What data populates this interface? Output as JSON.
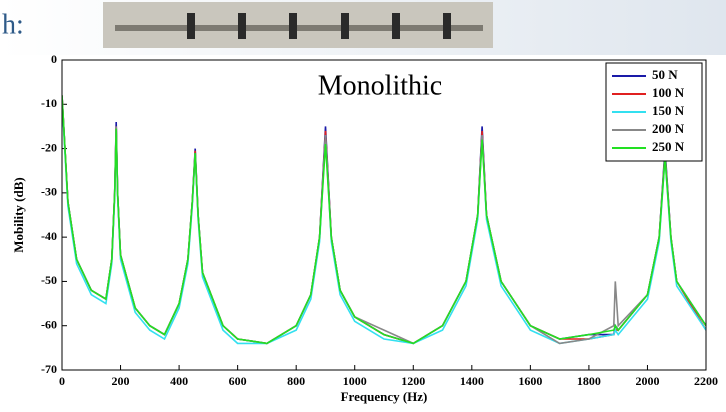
{
  "header_fragment": "h:",
  "chart_data": {
    "type": "line",
    "title": "Monolithic",
    "xlabel": "Frequency (Hz)",
    "ylabel": "Mobility (dB)",
    "x": [
      0,
      20,
      50,
      100,
      150,
      170,
      180,
      185,
      190,
      200,
      250,
      300,
      350,
      400,
      430,
      445,
      455,
      465,
      480,
      550,
      600,
      700,
      800,
      850,
      880,
      900,
      920,
      950,
      1000,
      1100,
      1200,
      1300,
      1380,
      1420,
      1435,
      1450,
      1500,
      1600,
      1700,
      1800,
      1885,
      1890,
      1900,
      2000,
      2040,
      2060,
      2080,
      2100,
      2200
    ],
    "series": [
      {
        "name": "50 N",
        "color": "#1a1aa8",
        "values": [
          -8,
          -32,
          -45,
          -52,
          -54,
          -45,
          -30,
          -14,
          -30,
          -44,
          -56,
          -60,
          -62,
          -55,
          -45,
          -32,
          -20,
          -35,
          -48,
          -60,
          -63,
          -64,
          -60,
          -53,
          -40,
          -15,
          -40,
          -52,
          -58,
          -62,
          -64,
          -60,
          -50,
          -35,
          -15,
          -35,
          -50,
          -60,
          -63,
          -62,
          -62,
          -60,
          -61,
          -53,
          -40,
          -20,
          -40,
          -50,
          -60
        ]
      },
      {
        "name": "100 N",
        "color": "#e02020",
        "values": [
          -8,
          -32,
          -45,
          -52,
          -54,
          -45,
          -30,
          -15,
          -30,
          -44,
          -56,
          -60,
          -62,
          -55,
          -45,
          -32,
          -20.5,
          -35,
          -48,
          -60,
          -63,
          -64,
          -60,
          -53,
          -40,
          -16,
          -40,
          -52,
          -58,
          -62,
          -64,
          -60,
          -50,
          -35,
          -16,
          -35,
          -50,
          -60,
          -63,
          -63,
          -62,
          -61,
          -61,
          -53,
          -40,
          -21,
          -40,
          -50,
          -61
        ]
      },
      {
        "name": "150 N",
        "color": "#33e0f0",
        "values": [
          -9,
          -33,
          -46,
          -53,
          -55,
          -46,
          -31,
          -16,
          -31,
          -45,
          -57,
          -61,
          -63,
          -56,
          -46,
          -33,
          -21,
          -36,
          -49,
          -61,
          -64,
          -64,
          -61,
          -54,
          -41,
          -17,
          -41,
          -53,
          -59,
          -63,
          -64,
          -61,
          -51,
          -36,
          -17,
          -36,
          -51,
          -61,
          -64,
          -63,
          -62,
          -61,
          -62,
          -54,
          -41,
          -22,
          -41,
          -51,
          -61
        ]
      },
      {
        "name": "200 N",
        "color": "#888888",
        "values": [
          -8,
          -32,
          -45,
          -52,
          -54,
          -45,
          -30,
          -15,
          -30,
          -44,
          -56,
          -60,
          -62,
          -55,
          -45,
          -32,
          -21,
          -35,
          -48,
          -60,
          -63,
          -64,
          -60,
          -53,
          -40,
          -17,
          -40,
          -52,
          -58,
          -61,
          -64,
          -60,
          -50,
          -35,
          -17,
          -35,
          -50,
          -60,
          -64,
          -63,
          -60,
          -50,
          -60,
          -53,
          -40,
          -21,
          -40,
          -50,
          -60
        ]
      },
      {
        "name": "250 N",
        "color": "#22e022",
        "values": [
          -8,
          -32,
          -45,
          -52,
          -54,
          -45,
          -30,
          -15.5,
          -30,
          -44,
          -56,
          -60,
          -62,
          -55,
          -45,
          -32,
          -21,
          -35,
          -48,
          -60,
          -63,
          -64,
          -60,
          -53,
          -40,
          -19,
          -40,
          -52,
          -58,
          -62,
          -64,
          -60,
          -50,
          -35,
          -18,
          -35,
          -50,
          -60,
          -63,
          -62,
          -61,
          -60,
          -61,
          -53,
          -40,
          -22,
          -40,
          -50,
          -60
        ]
      }
    ],
    "xlim": [
      0,
      2200
    ],
    "xticks": [
      0,
      200,
      400,
      600,
      800,
      1000,
      1200,
      1400,
      1600,
      1800,
      2000,
      2200
    ],
    "ylim": [
      -70,
      0
    ],
    "yticks": [
      0,
      -10,
      -20,
      -30,
      -40,
      -50,
      -60,
      -70
    ],
    "legend": "upper right"
  }
}
